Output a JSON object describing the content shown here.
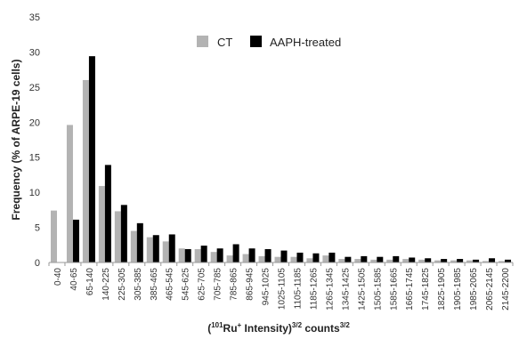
{
  "chart_data": {
    "type": "bar",
    "title": "",
    "ylabel": "Frequency (% of ARPE-19 cells)",
    "xlabel": {
      "open": "(",
      "sup1": "101",
      "ru": "Ru",
      "sup2": "+",
      "mid": " Intensity)",
      "sup3": "3/2",
      "counts": " counts",
      "sup4": "3/2"
    },
    "ylim": [
      0,
      35
    ],
    "yticks": [
      "0",
      "5",
      "10",
      "15",
      "20",
      "25",
      "30",
      "35"
    ],
    "grid": false,
    "legend_position": "top-center",
    "categories": [
      "0-40",
      "40-65",
      "65-140",
      "140-225",
      "225-305",
      "305-385",
      "385-465",
      "465-545",
      "545-625",
      "625-705",
      "705-785",
      "785-865",
      "865-945",
      "945-1025",
      "1025-1105",
      "1105-1185",
      "1185-1265",
      "1265-1345",
      "1345-1425",
      "1425-1505",
      "1505-1585",
      "1585-1665",
      "1665-1745",
      "1745-1825",
      "1825-1905",
      "1905-1985",
      "1985-2065",
      "2065-2145",
      "2145-2200"
    ],
    "series": [
      {
        "name": "CT",
        "color": "#b3b3b3",
        "values": [
          7.4,
          19.6,
          26.0,
          10.9,
          7.3,
          4.5,
          3.6,
          3.0,
          2.0,
          1.9,
          1.5,
          1.0,
          1.2,
          0.9,
          0.8,
          0.8,
          0.6,
          1.0,
          0.5,
          0.5,
          0.4,
          0.4,
          0.5,
          0.4,
          0.3,
          0.3,
          0.3,
          0.2,
          0.2
        ]
      },
      {
        "name": "AAPH-treated",
        "color": "#000000",
        "values": [
          0,
          6.1,
          29.4,
          13.9,
          8.2,
          5.6,
          3.9,
          4.0,
          1.9,
          2.4,
          2.0,
          2.6,
          2.0,
          1.9,
          1.7,
          1.4,
          1.3,
          1.4,
          0.8,
          0.9,
          0.8,
          0.9,
          0.7,
          0.6,
          0.5,
          0.5,
          0.4,
          0.6,
          0.4
        ]
      }
    ]
  }
}
